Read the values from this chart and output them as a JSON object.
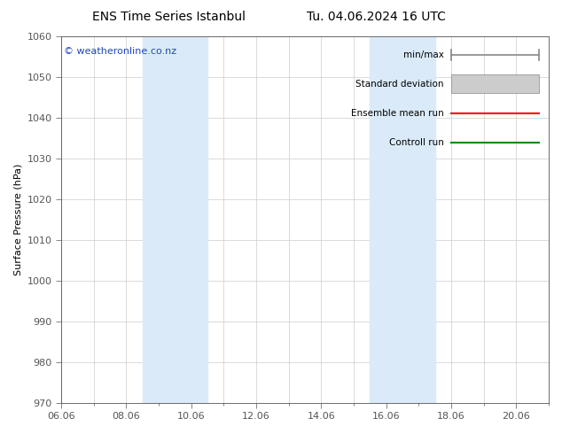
{
  "title_left": "ENS Time Series Istanbul",
  "title_right": "Tu. 04.06.2024 16 UTC",
  "ylabel": "Surface Pressure (hPa)",
  "ylim": [
    970,
    1060
  ],
  "yticks": [
    970,
    980,
    990,
    1000,
    1010,
    1020,
    1030,
    1040,
    1050,
    1060
  ],
  "xlim": [
    0,
    15
  ],
  "xtick_labels": [
    "06.06",
    "08.06",
    "10.06",
    "12.06",
    "14.06",
    "16.06",
    "18.06",
    "20.06"
  ],
  "xtick_positions": [
    0,
    2,
    4,
    6,
    8,
    10,
    12,
    14
  ],
  "minor_xtick_positions": [
    0,
    1,
    2,
    3,
    4,
    5,
    6,
    7,
    8,
    9,
    10,
    11,
    12,
    13,
    14,
    15
  ],
  "shaded_bands": [
    {
      "xstart": 2.5,
      "xend": 4.5
    },
    {
      "xstart": 9.5,
      "xend": 11.5
    }
  ],
  "band_color": "#daeaf8",
  "background_color": "#ffffff",
  "watermark": "© weatheronline.co.nz",
  "watermark_color": "#2244cc",
  "legend_entries": [
    {
      "label": "min/max",
      "style": "minmax",
      "color": "#888888"
    },
    {
      "label": "Standard deviation",
      "style": "band",
      "color": "#cccccc"
    },
    {
      "label": "Ensemble mean run",
      "style": "line",
      "color": "#ff0000"
    },
    {
      "label": "Controll run",
      "style": "line",
      "color": "#008800"
    }
  ],
  "grid_color": "#cccccc",
  "tick_color": "#555555",
  "spine_color": "#555555",
  "title_fontsize": 10,
  "tick_fontsize": 8,
  "ylabel_fontsize": 8,
  "legend_fontsize": 7.5
}
